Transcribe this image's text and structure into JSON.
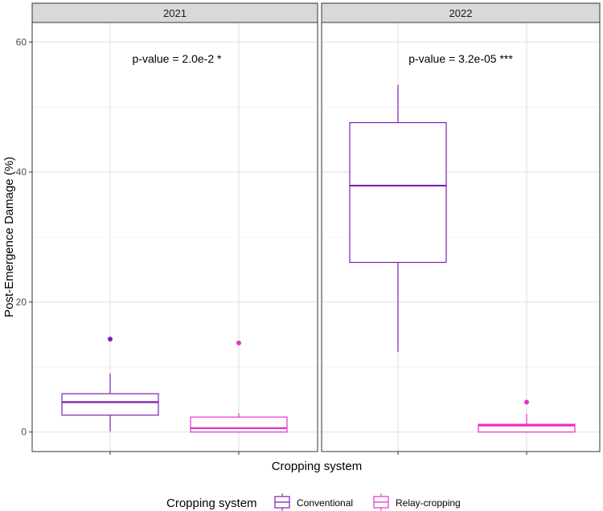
{
  "chart_data": {
    "type": "boxplot",
    "xlabel": "Cropping system",
    "ylabel": "Post-Emergence Damage (%)",
    "ylim": [
      -3,
      63
    ],
    "yticks": [
      0,
      20,
      40,
      60
    ],
    "grid": true,
    "colors": {
      "Conventional": "#7e1fb0",
      "Relay-cropping": "#e532c8"
    },
    "legend": {
      "title": "Cropping system",
      "position": "bottom",
      "entries": [
        "Conventional",
        "Relay-cropping"
      ]
    },
    "panels": [
      {
        "strip": "2021",
        "annotation": "p-value = 2.0e-2 *",
        "groups": [
          {
            "name": "Conventional",
            "whisker_low": 0.1,
            "q1": 2.6,
            "median": 4.6,
            "q3": 5.9,
            "whisker_high": 9.0,
            "outliers": [
              14.3
            ]
          },
          {
            "name": "Relay-cropping",
            "whisker_low": 0.0,
            "q1": 0.0,
            "median": 0.6,
            "q3": 2.3,
            "whisker_high": 2.9,
            "outliers": [
              13.7
            ]
          }
        ]
      },
      {
        "strip": "2022",
        "annotation": "p-value = 3.2e-05 ***",
        "groups": [
          {
            "name": "Conventional",
            "whisker_low": 12.3,
            "q1": 26.1,
            "median": 37.9,
            "q3": 47.6,
            "whisker_high": 53.4,
            "outliers": []
          },
          {
            "name": "Relay-cropping",
            "whisker_low": 0.0,
            "q1": 0.0,
            "median": 1.0,
            "q3": 1.2,
            "whisker_high": 2.8,
            "outliers": [
              4.6
            ]
          }
        ]
      }
    ]
  }
}
